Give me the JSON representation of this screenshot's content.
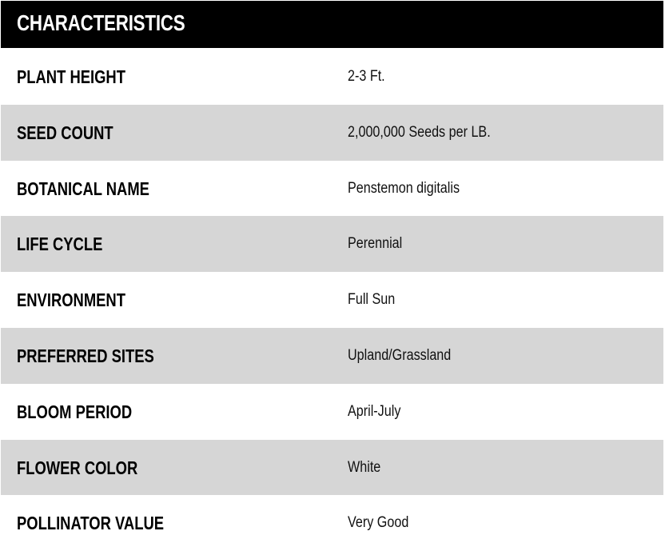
{
  "header": {
    "title": "CHARACTERISTICS"
  },
  "rows": [
    {
      "label": "PLANT HEIGHT",
      "value": "2-3 Ft."
    },
    {
      "label": "SEED COUNT",
      "value": "2,000,000 Seeds per LB."
    },
    {
      "label": "BOTANICAL NAME",
      "value": "Penstemon digitalis"
    },
    {
      "label": "LIFE CYCLE",
      "value": "Perennial"
    },
    {
      "label": "ENVIRONMENT",
      "value": "Full Sun"
    },
    {
      "label": "PREFERRED SITES",
      "value": "Upland/Grassland"
    },
    {
      "label": "BLOOM PERIOD",
      "value": "April-July"
    },
    {
      "label": "FLOWER COLOR",
      "value": "White"
    },
    {
      "label": "POLLINATOR VALUE",
      "value": "Very Good"
    }
  ],
  "colors": {
    "header_bg": "#000000",
    "alt_row_bg": "#d6d6d6"
  }
}
